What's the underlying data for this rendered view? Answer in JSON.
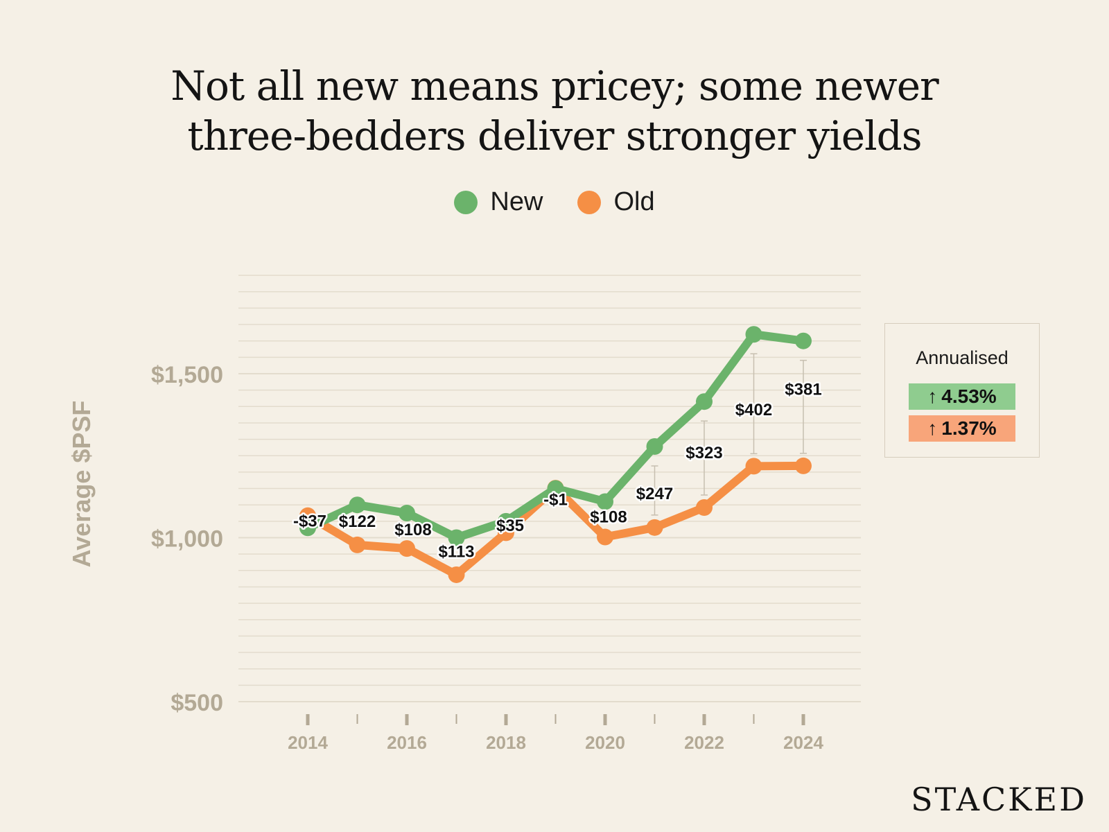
{
  "title_lines": [
    "Not all new means pricey; some newer",
    "three-bedders deliver stronger yields"
  ],
  "brand": "STACKED",
  "colors": {
    "new": "#6bb36b",
    "old": "#f58f45",
    "grid": "#e3dccd",
    "axis_text": "#b3a995",
    "background": "#f5f0e6",
    "badge_new": "#8fcc8f",
    "badge_old": "#f8a57a"
  },
  "legend": [
    {
      "label": "New",
      "color": "#6bb36b"
    },
    {
      "label": "Old",
      "color": "#f58f45"
    }
  ],
  "annualised": {
    "title": "Annualised",
    "new_label": "4.53%",
    "old_label": "1.37%",
    "arrow_icon": "↑"
  },
  "chart_data": {
    "type": "line",
    "title": "Not all new means pricey; some newer three-bedders deliver stronger yields",
    "ylabel": "Average $PSF",
    "xlabel": "",
    "x": [
      2014,
      2015,
      2016,
      2017,
      2018,
      2019,
      2020,
      2021,
      2022,
      2023,
      2024
    ],
    "x_tick_labels": [
      "2014",
      "2016",
      "2018",
      "2020",
      "2022",
      "2024"
    ],
    "y_tick_labels": [
      "$500",
      "$1,000",
      "$1,500"
    ],
    "y_ticks": [
      500,
      1000,
      1500
    ],
    "ylim": [
      500,
      1830
    ],
    "grid": true,
    "legend_position": "top-center",
    "series": [
      {
        "name": "New",
        "values": [
          1030,
          1100,
          1075,
          1000,
          1050,
          1150,
          1110,
          1278,
          1415,
          1620,
          1600
        ]
      },
      {
        "name": "Old",
        "values": [
          1067,
          978,
          967,
          887,
          1015,
          1151,
          1002,
          1031,
          1092,
          1218,
          1219
        ]
      }
    ],
    "difference_labels": [
      "-$37",
      "$122",
      "$108",
      "$113",
      "$35",
      "-$1",
      "$108",
      "$247",
      "$323",
      "$402",
      "$381"
    ]
  }
}
